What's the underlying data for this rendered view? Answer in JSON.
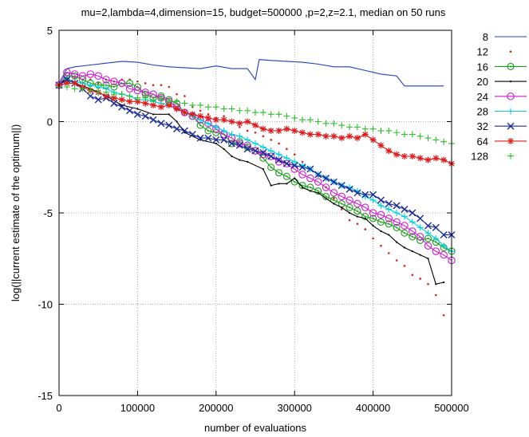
{
  "chart_data": {
    "type": "line",
    "title": "mu=2,lambda=4,dimension=15, budget=500000 ,p=2,z=2.1, median on 50 runs",
    "xlabel": "number of evaluations",
    "ylabel": "log(||current estimate of the optimum||)",
    "xlim": [
      0,
      500000
    ],
    "ylim": [
      -15,
      5
    ],
    "xticks": [
      "0",
      "100000",
      "200000",
      "300000",
      "400000",
      "500000"
    ],
    "yticks": [
      "5",
      "0",
      "-5",
      "-10",
      "-15"
    ],
    "grid": true,
    "legend_position": "top-right outside",
    "series": [
      {
        "name": "8",
        "color": "#1f3fbf",
        "marker": "none",
        "x": [
          0,
          10000,
          20000,
          40000,
          60000,
          80000,
          100000,
          120000,
          140000,
          160000,
          180000,
          200000,
          220000,
          240000,
          250000,
          255000,
          270000,
          290000,
          310000,
          330000,
          350000,
          370000,
          390000,
          410000,
          430000,
          440000,
          460000,
          490000
        ],
        "y": [
          2.1,
          2.9,
          3.0,
          3.1,
          3.2,
          3.3,
          3.25,
          3.1,
          3.0,
          2.95,
          2.9,
          3.05,
          2.9,
          2.9,
          2.3,
          3.4,
          3.35,
          3.3,
          3.25,
          3.15,
          3.0,
          3.0,
          2.8,
          2.6,
          2.5,
          1.95,
          1.95,
          1.95
        ]
      },
      {
        "name": "12",
        "color": "#d62020",
        "marker": "dot",
        "x": [
          0,
          10000,
          20000,
          30000,
          40000,
          50000,
          60000,
          70000,
          80000,
          90000,
          100000,
          110000,
          120000,
          130000,
          140000,
          150000,
          160000,
          170000,
          180000,
          190000,
          200000,
          210000,
          220000,
          230000,
          240000,
          250000,
          260000,
          270000,
          280000,
          290000,
          300000,
          310000,
          320000,
          330000,
          340000,
          350000,
          360000,
          370000,
          380000,
          390000,
          400000,
          410000,
          420000,
          430000,
          440000,
          450000,
          460000,
          470000,
          480000,
          490000
        ],
        "y": [
          2.0,
          2.2,
          2.4,
          2.3,
          2.3,
          2.1,
          2.3,
          2.2,
          2.3,
          2.3,
          2.2,
          2.1,
          2.0,
          2.0,
          1.9,
          1.5,
          1.4,
          0.8,
          0.6,
          0.4,
          0.2,
          0.3,
          0.0,
          -0.3,
          -0.5,
          -0.6,
          -0.8,
          -1.0,
          -1.2,
          -1.5,
          -1.8,
          -2.2,
          -2.6,
          -3.0,
          -3.6,
          -4.2,
          -4.8,
          -5.4,
          -5.6,
          -5.9,
          -6.4,
          -6.8,
          -7.2,
          -7.6,
          -7.9,
          -8.4,
          -8.6,
          -8.9,
          -9.5,
          -10.6
        ]
      },
      {
        "name": "16",
        "color": "#1a9e1a",
        "marker": "circle-dot",
        "x": [
          0,
          10000,
          20000,
          30000,
          40000,
          50000,
          60000,
          70000,
          80000,
          90000,
          100000,
          110000,
          120000,
          130000,
          140000,
          150000,
          160000,
          170000,
          180000,
          190000,
          200000,
          210000,
          220000,
          230000,
          240000,
          250000,
          260000,
          270000,
          280000,
          290000,
          300000,
          310000,
          320000,
          330000,
          340000,
          350000,
          360000,
          370000,
          380000,
          390000,
          400000,
          410000,
          420000,
          430000,
          440000,
          450000,
          460000,
          470000,
          480000,
          490000,
          500000
        ],
        "y": [
          2.0,
          2.5,
          2.5,
          2.3,
          2.1,
          2.0,
          2.0,
          1.9,
          2.1,
          2.1,
          1.9,
          1.5,
          1.3,
          1.4,
          1.2,
          1.0,
          0.5,
          0.3,
          -0.2,
          -0.5,
          -0.6,
          -0.7,
          -1.2,
          -1.1,
          -1.4,
          -1.6,
          -2.0,
          -2.5,
          -2.8,
          -3.0,
          -3.3,
          -3.5,
          -3.6,
          -3.8,
          -4.1,
          -4.3,
          -4.5,
          -4.7,
          -4.9,
          -5.2,
          -5.3,
          -5.5,
          -5.6,
          -5.8,
          -6.1,
          -6.3,
          -6.5,
          -6.4,
          -6.6,
          -6.9,
          -7.1
        ]
      },
      {
        "name": "20",
        "color": "#000000",
        "marker": "small-dot",
        "x": [
          0,
          10000,
          20000,
          40000,
          60000,
          80000,
          100000,
          120000,
          140000,
          150000,
          160000,
          180000,
          200000,
          210000,
          220000,
          230000,
          240000,
          260000,
          270000,
          280000,
          290000,
          300000,
          310000,
          320000,
          330000,
          340000,
          350000,
          360000,
          370000,
          380000,
          390000,
          400000,
          410000,
          420000,
          430000,
          440000,
          450000,
          460000,
          470000,
          480000,
          490000
        ],
        "y": [
          2.0,
          2.4,
          2.1,
          1.8,
          1.4,
          0.9,
          0.7,
          0.4,
          0.4,
          0.0,
          -0.6,
          -1.0,
          -1.2,
          -1.5,
          -1.9,
          -2.1,
          -2.2,
          -2.6,
          -3.5,
          -3.4,
          -3.4,
          -3.1,
          -3.6,
          -3.8,
          -3.9,
          -4.2,
          -4.5,
          -4.7,
          -5.0,
          -5.2,
          -5.3,
          -5.7,
          -6.0,
          -6.2,
          -6.6,
          -6.9,
          -7.1,
          -7.3,
          -7.5,
          -8.9,
          -8.8
        ]
      },
      {
        "name": "24",
        "color": "#d21ad2",
        "marker": "circle",
        "x": [
          0,
          10000,
          20000,
          30000,
          40000,
          50000,
          60000,
          70000,
          80000,
          90000,
          100000,
          110000,
          120000,
          130000,
          140000,
          150000,
          160000,
          170000,
          180000,
          190000,
          200000,
          210000,
          220000,
          230000,
          240000,
          250000,
          260000,
          270000,
          280000,
          290000,
          300000,
          310000,
          320000,
          330000,
          340000,
          350000,
          360000,
          370000,
          380000,
          390000,
          400000,
          410000,
          420000,
          430000,
          440000,
          450000,
          460000,
          470000,
          480000,
          490000,
          500000
        ],
        "y": [
          2.0,
          2.7,
          2.6,
          2.5,
          2.6,
          2.5,
          2.3,
          2.2,
          2.1,
          1.8,
          1.7,
          1.6,
          1.5,
          1.3,
          1.1,
          0.8,
          0.5,
          0.3,
          0.1,
          -0.1,
          -0.4,
          -0.7,
          -0.9,
          -1.2,
          -1.3,
          -1.6,
          -1.8,
          -1.9,
          -2.2,
          -2.3,
          -2.6,
          -2.9,
          -3.1,
          -3.3,
          -3.6,
          -3.9,
          -4.1,
          -4.3,
          -4.5,
          -4.7,
          -5.0,
          -5.1,
          -5.3,
          -5.5,
          -5.7,
          -6.0,
          -6.3,
          -6.8,
          -7.1,
          -7.3,
          -7.6
        ]
      },
      {
        "name": "28",
        "color": "#00d0e0",
        "marker": "plus",
        "x": [
          0,
          10000,
          20000,
          30000,
          40000,
          50000,
          60000,
          70000,
          80000,
          90000,
          100000,
          110000,
          120000,
          130000,
          140000,
          150000,
          160000,
          170000,
          180000,
          190000,
          200000,
          210000,
          220000,
          230000,
          240000,
          250000,
          260000,
          270000,
          280000,
          290000,
          300000,
          310000,
          320000,
          330000,
          340000,
          350000,
          360000,
          370000,
          380000,
          390000,
          400000,
          410000,
          420000,
          430000,
          440000,
          450000,
          460000,
          470000,
          480000,
          490000,
          500000
        ],
        "y": [
          2.0,
          2.3,
          2.2,
          2.1,
          2.0,
          1.9,
          1.8,
          1.6,
          1.5,
          1.4,
          1.2,
          1.2,
          1.1,
          1.0,
          0.9,
          0.7,
          0.5,
          0.3,
          0.1,
          -0.1,
          -0.3,
          -0.5,
          -0.7,
          -0.8,
          -1.0,
          -1.2,
          -1.4,
          -1.6,
          -1.8,
          -2.0,
          -2.2,
          -2.4,
          -2.6,
          -2.9,
          -3.1,
          -3.3,
          -3.5,
          -3.6,
          -3.8,
          -4.1,
          -4.3,
          -4.6,
          -4.8,
          -5.0,
          -5.2,
          -5.5,
          -5.8,
          -6.1,
          -6.4,
          -6.8,
          -7.1
        ]
      },
      {
        "name": "32",
        "color": "#1a2a9a",
        "marker": "x",
        "x": [
          0,
          10000,
          20000,
          30000,
          40000,
          50000,
          60000,
          70000,
          80000,
          90000,
          100000,
          110000,
          120000,
          130000,
          140000,
          150000,
          160000,
          170000,
          180000,
          190000,
          200000,
          210000,
          220000,
          230000,
          240000,
          250000,
          260000,
          270000,
          280000,
          290000,
          300000,
          310000,
          320000,
          330000,
          340000,
          350000,
          360000,
          370000,
          380000,
          390000,
          400000,
          410000,
          420000,
          430000,
          440000,
          450000,
          460000,
          470000,
          480000,
          490000,
          500000
        ],
        "y": [
          2.0,
          2.3,
          2.1,
          1.8,
          1.4,
          1.2,
          1.3,
          1.0,
          0.8,
          0.6,
          0.4,
          0.3,
          0.1,
          -0.1,
          -0.2,
          -0.4,
          -0.5,
          -0.7,
          -0.9,
          -0.9,
          -1.0,
          -1.0,
          -1.2,
          -1.3,
          -1.5,
          -1.6,
          -1.7,
          -1.9,
          -2.1,
          -2.3,
          -2.4,
          -2.5,
          -2.6,
          -2.9,
          -3.1,
          -3.3,
          -3.5,
          -3.7,
          -3.9,
          -4.0,
          -4.0,
          -4.3,
          -4.5,
          -4.6,
          -4.8,
          -5.0,
          -5.3,
          -5.7,
          -5.8,
          -6.2,
          -6.2
        ]
      },
      {
        "name": "64",
        "color": "#e01a1a",
        "marker": "star",
        "x": [
          0,
          10000,
          20000,
          30000,
          40000,
          50000,
          60000,
          70000,
          80000,
          90000,
          100000,
          110000,
          120000,
          130000,
          140000,
          150000,
          160000,
          170000,
          180000,
          190000,
          200000,
          210000,
          220000,
          230000,
          240000,
          250000,
          260000,
          270000,
          280000,
          290000,
          300000,
          310000,
          320000,
          330000,
          340000,
          350000,
          360000,
          370000,
          380000,
          390000,
          400000,
          410000,
          420000,
          430000,
          440000,
          450000,
          460000,
          470000,
          480000,
          490000,
          500000
        ],
        "y": [
          2.0,
          2.1,
          2.1,
          1.9,
          1.7,
          1.6,
          1.4,
          1.3,
          1.2,
          1.1,
          1.1,
          1.0,
          0.9,
          0.8,
          0.9,
          0.7,
          0.5,
          0.4,
          0.3,
          0.2,
          0.1,
          0.1,
          0.0,
          -0.1,
          0.0,
          -0.2,
          -0.4,
          -0.5,
          -0.5,
          -0.4,
          -0.5,
          -0.6,
          -0.7,
          -0.7,
          -0.8,
          -0.8,
          -0.9,
          -0.8,
          -0.9,
          -0.7,
          -1.0,
          -1.3,
          -1.6,
          -1.8,
          -1.9,
          -1.9,
          -2.0,
          -2.1,
          -2.0,
          -2.1,
          -2.3
        ]
      },
      {
        "name": "128",
        "color": "#2ac02a",
        "marker": "plus",
        "x": [
          0,
          10000,
          20000,
          30000,
          40000,
          50000,
          60000,
          70000,
          80000,
          90000,
          100000,
          110000,
          120000,
          130000,
          140000,
          150000,
          160000,
          170000,
          180000,
          190000,
          200000,
          210000,
          220000,
          230000,
          240000,
          250000,
          260000,
          270000,
          280000,
          290000,
          300000,
          310000,
          320000,
          330000,
          340000,
          350000,
          360000,
          370000,
          380000,
          390000,
          400000,
          410000,
          420000,
          430000,
          440000,
          450000,
          460000,
          470000,
          480000,
          490000,
          500000
        ],
        "y": [
          1.9,
          1.9,
          1.8,
          1.8,
          1.7,
          1.6,
          1.6,
          1.5,
          1.5,
          1.4,
          1.3,
          1.3,
          1.2,
          1.2,
          1.1,
          1.1,
          1.0,
          0.9,
          0.9,
          0.8,
          0.8,
          0.7,
          0.7,
          0.6,
          0.6,
          0.5,
          0.5,
          0.4,
          0.4,
          0.3,
          0.2,
          0.1,
          0.1,
          0.0,
          -0.1,
          -0.1,
          -0.2,
          -0.3,
          -0.3,
          -0.4,
          -0.4,
          -0.5,
          -0.5,
          -0.6,
          -0.7,
          -0.7,
          -0.8,
          -0.9,
          -1.0,
          -1.1,
          -1.2
        ]
      }
    ]
  }
}
